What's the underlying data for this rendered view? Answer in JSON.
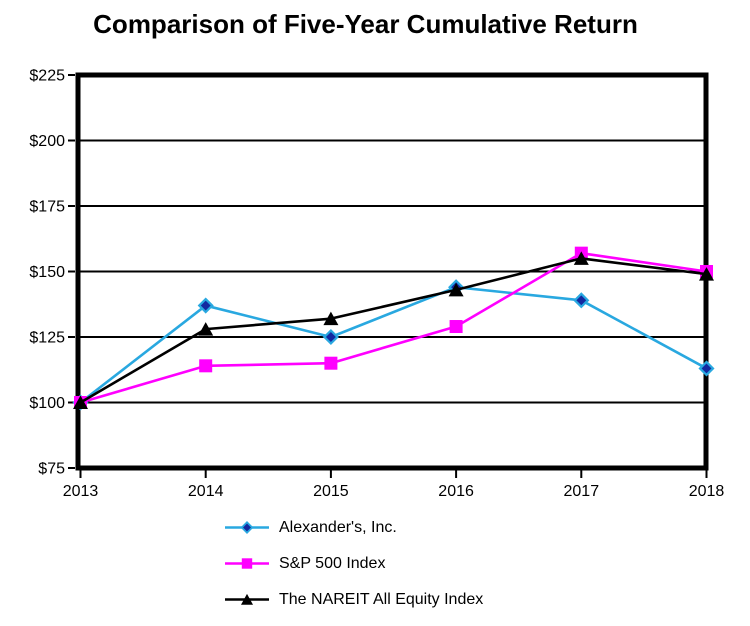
{
  "chart_data": {
    "type": "line",
    "title": "Comparison of Five-Year Cumulative Return",
    "categories": [
      "2013",
      "2014",
      "2015",
      "2016",
      "2017",
      "2018"
    ],
    "xlabel": "",
    "ylabel": "",
    "ylim": [
      75,
      225
    ],
    "y_ticks": [
      {
        "value": 75,
        "label": "$75"
      },
      {
        "value": 100,
        "label": "$100"
      },
      {
        "value": 125,
        "label": "$125"
      },
      {
        "value": 150,
        "label": "$150"
      },
      {
        "value": 175,
        "label": "$175"
      },
      {
        "value": 200,
        "label": "$200"
      },
      {
        "value": 225,
        "label": "$225"
      }
    ],
    "grid": "horizontal-only",
    "legend_position": "bottom-left",
    "colors": {
      "axis": "#000000",
      "gridline": "#000000",
      "background": "#ffffff"
    },
    "series": [
      {
        "name": "Alexander's, Inc.",
        "marker": "diamond",
        "color": "#29A8E0",
        "marker_fill": "#1428A0",
        "values": [
          100,
          137,
          125,
          144,
          139,
          113
        ]
      },
      {
        "name": "S&P 500 Index",
        "marker": "square",
        "color": "#FF00FF",
        "marker_fill": "#FF00FF",
        "values": [
          100,
          114,
          115,
          129,
          157,
          150
        ]
      },
      {
        "name": "The NAREIT All Equity Index",
        "marker": "triangle",
        "color": "#000000",
        "marker_fill": "#000000",
        "values": [
          100,
          128,
          132,
          143,
          155,
          149
        ]
      }
    ]
  }
}
